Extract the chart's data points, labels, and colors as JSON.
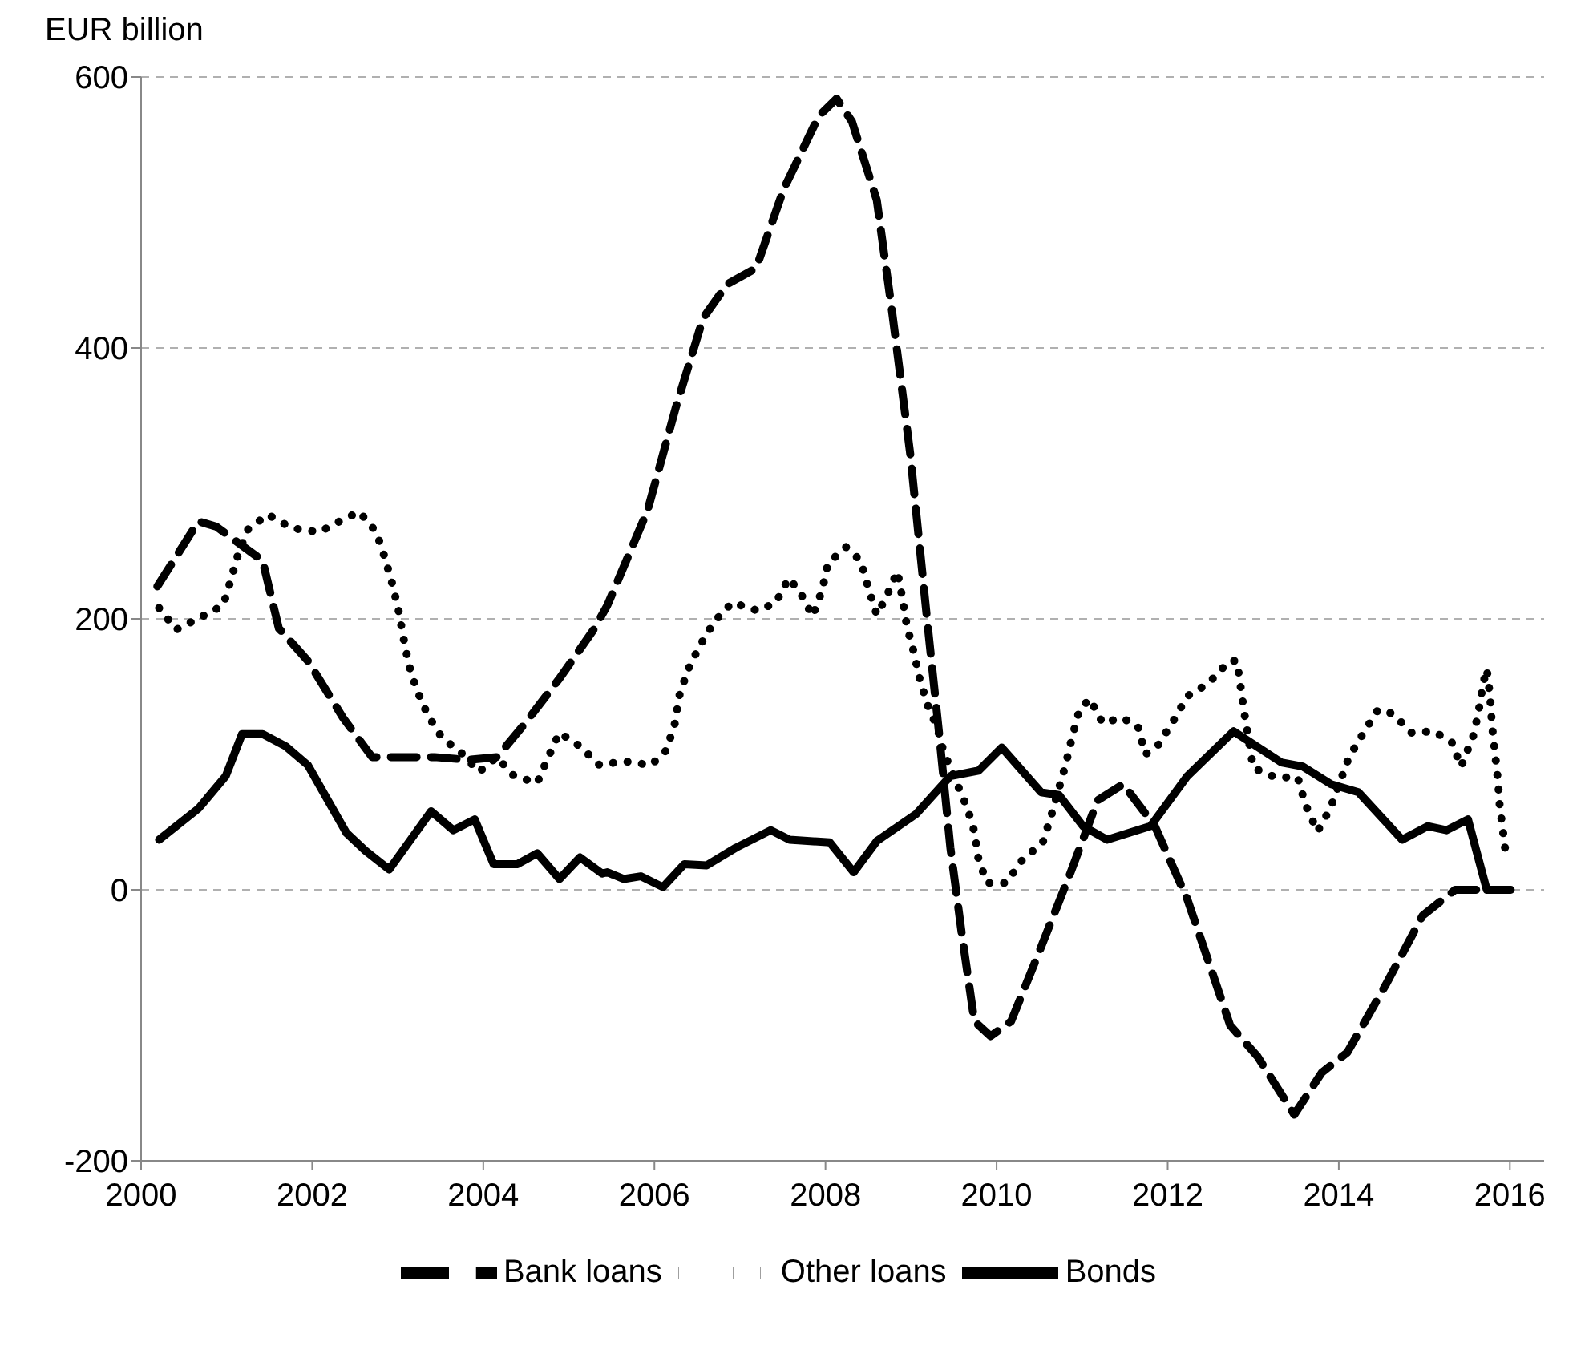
{
  "chart_data": {
    "type": "line",
    "ylabel": "EUR billion",
    "xlim": [
      2000,
      2016.4
    ],
    "xticks": [
      2000,
      2002,
      2004,
      2006,
      2008,
      2010,
      2012,
      2014,
      2016
    ],
    "ylim": [
      -200,
      600
    ],
    "yticks": [
      -200,
      0,
      200,
      400,
      600
    ],
    "grid": "y",
    "legend": "bottom",
    "marker": "none",
    "series": [
      {
        "name": "Bank loans",
        "color": "#000000",
        "line_style": "dashed",
        "x": [
          2000.19,
          2000.67,
          2000.88,
          2001.42,
          2001.61,
          2001.95,
          2002.36,
          2002.7,
          2003.43,
          2003.82,
          2004.16,
          2004.49,
          2004.89,
          2005.3,
          2005.45,
          2005.92,
          2006.25,
          2006.57,
          2006.85,
          2007.19,
          2007.51,
          2007.92,
          2008.13,
          2008.31,
          2008.6,
          2008.78,
          2008.99,
          2009.19,
          2009.33,
          2009.46,
          2009.59,
          2009.74,
          2009.93,
          2010.17,
          2010.49,
          2010.86,
          2011.18,
          2011.48,
          2011.85,
          2012.23,
          2012.73,
          2013.05,
          2013.48,
          2013.8,
          2014.1,
          2014.55,
          2014.98,
          2015.36,
          2015.67
        ],
        "values": [
          224,
          272,
          268,
          243,
          193,
          169,
          127,
          98,
          98,
          96,
          98,
          123,
          156,
          193,
          210,
          280,
          356,
          422,
          447,
          459,
          517,
          571,
          584,
          567,
          509,
          426,
          322,
          198,
          114,
          31,
          -31,
          -97,
          -108,
          -97,
          -47,
          12,
          66,
          78,
          47,
          -7,
          -100,
          -123,
          -166,
          -135,
          -120,
          -70,
          -19,
          0,
          0
        ]
      },
      {
        "name": "Other loans",
        "color": "#000000",
        "line_style": "dotted",
        "x": [
          2000.21,
          2000.41,
          2000.66,
          2000.96,
          2001.05,
          2001.14,
          2001.25,
          2001.48,
          2001.76,
          2002.08,
          2002.32,
          2002.55,
          2002.75,
          2002.85,
          2002.94,
          2003.01,
          2003.07,
          2003.13,
          2003.22,
          2003.35,
          2003.52,
          2003.73,
          2003.95,
          2004.16,
          2004.36,
          2004.63,
          2004.76,
          2004.89,
          2005.13,
          2005.36,
          2005.64,
          2005.96,
          2006.14,
          2006.24,
          2006.29,
          2006.39,
          2006.52,
          2006.7,
          2006.91,
          2007.21,
          2007.42,
          2007.57,
          2007.7,
          2007.85,
          2007.96,
          2008.03,
          2008.24,
          2008.41,
          2008.5,
          2008.6,
          2008.71,
          2008.84,
          2008.9,
          2008.95,
          2009.03,
          2009.1,
          2009.19,
          2009.31,
          2009.38,
          2009.66,
          2009.74,
          2009.79,
          2009.89,
          2010.11,
          2010.3,
          2010.54,
          2010.64,
          2010.81,
          2010.88,
          2010.97,
          2011.09,
          2011.24,
          2011.46,
          2011.65,
          2011.74,
          2011.89,
          2012.06,
          2012.23,
          2012.47,
          2012.72,
          2012.81,
          2012.9,
          2013.0,
          2013.26,
          2013.52,
          2013.61,
          2013.75,
          2013.9,
          2014.12,
          2014.29,
          2014.46,
          2014.63,
          2014.85,
          2015.11,
          2015.32,
          2015.43,
          2015.58,
          2015.64,
          2015.69,
          2015.73,
          2015.77,
          2015.79,
          2015.86,
          2015.88,
          2015.92,
          2015.96
        ],
        "values": [
          208,
          192,
          200,
          210,
          229,
          249,
          266,
          277,
          267,
          264,
          272,
          279,
          264,
          245,
          225,
          206,
          185,
          166,
          148,
          129,
          112,
          102,
          87,
          98,
          84,
          79,
          98,
          116,
          106,
          92,
          95,
          92,
          103,
          123,
          143,
          162,
          179,
          198,
          212,
          206,
          212,
          230,
          220,
          202,
          221,
          241,
          253,
          243,
          223,
          203,
          216,
          235,
          215,
          195,
          176,
          156,
          137,
          119,
          102,
          60,
          43,
          22,
          5,
          5,
          22,
          35,
          55,
          93,
          112,
          133,
          141,
          123,
          127,
          121,
          100,
          107,
          124,
          143,
          152,
          169,
          169,
          129,
          90,
          83,
          83,
          63,
          43,
          60,
          98,
          116,
          133,
          130,
          116,
          117,
          109,
          91,
          115,
          134,
          153,
          163,
          142,
          122,
          81,
          63,
          43,
          22
        ]
      },
      {
        "name": "Bonds",
        "color": "#000000",
        "line_style": "solid",
        "x": [
          2000.21,
          2000.67,
          2000.99,
          2001.18,
          2001.42,
          2001.69,
          2001.95,
          2002.4,
          2002.62,
          2002.9,
          2003.39,
          2003.65,
          2003.9,
          2004.12,
          2004.4,
          2004.63,
          2004.89,
          2005.13,
          2005.39,
          2005.45,
          2005.64,
          2005.84,
          2006.1,
          2006.35,
          2006.61,
          2006.95,
          2007.36,
          2007.58,
          2008.05,
          2008.33,
          2008.6,
          2009.06,
          2009.46,
          2009.79,
          2010.06,
          2010.52,
          2010.73,
          2011.01,
          2011.29,
          2011.8,
          2012.23,
          2012.77,
          2013.33,
          2013.58,
          2013.91,
          2014.23,
          2014.74,
          2015.04,
          2015.26,
          2015.51,
          2015.73,
          2016.01
        ],
        "values": [
          37,
          60,
          84,
          115,
          115,
          106,
          92,
          42,
          29,
          15,
          58,
          44,
          52,
          19,
          19,
          27,
          8,
          24,
          12,
          13,
          8,
          10,
          2,
          19,
          18,
          31,
          44,
          37,
          35,
          13,
          36,
          56,
          84,
          88,
          105,
          72,
          70,
          47,
          37,
          47,
          84,
          117,
          94,
          91,
          78,
          72,
          37,
          47,
          44,
          52,
          0,
          0
        ]
      }
    ]
  }
}
